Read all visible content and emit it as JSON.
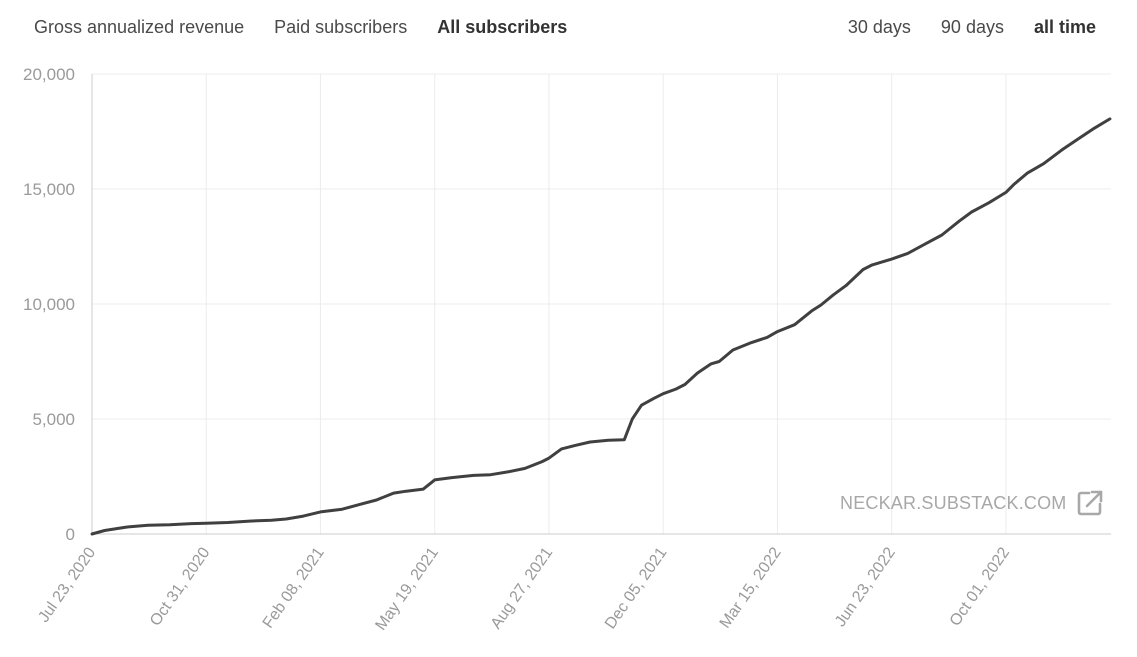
{
  "tabs": {
    "metrics": [
      {
        "label": "Gross annualized revenue",
        "active": false
      },
      {
        "label": "Paid subscribers",
        "active": false
      },
      {
        "label": "All subscribers",
        "active": true
      }
    ],
    "ranges": [
      {
        "label": "30 days",
        "active": false
      },
      {
        "label": "90 days",
        "active": false
      },
      {
        "label": "all time",
        "active": true
      }
    ]
  },
  "watermark": {
    "text": "NECKAR.SUBSTACK.COM",
    "icon": "external-link-icon"
  },
  "colors": {
    "line": "#404040",
    "grid": "#ececec",
    "axis": "#cccccc",
    "tick_text": "#9a9a9a"
  },
  "chart_data": {
    "type": "line",
    "title": "",
    "xlabel": "",
    "ylabel": "",
    "ylim": [
      0,
      20000
    ],
    "yticks": [
      0,
      5000,
      10000,
      15000,
      20000
    ],
    "ytick_labels": [
      "0",
      "5,000",
      "10,000",
      "15,000",
      "20,000"
    ],
    "xlim": [
      "2020-07-23",
      "2023-01-01"
    ],
    "xticks": [
      "2020-07-23",
      "2020-10-31",
      "2021-02-08",
      "2021-05-19",
      "2021-08-27",
      "2021-12-05",
      "2022-03-15",
      "2022-06-23",
      "2022-10-01"
    ],
    "xtick_labels": [
      "Jul 23, 2020",
      "Oct 31, 2020",
      "Feb 08, 2021",
      "May 19, 2021",
      "Aug 27, 2021",
      "Dec 05, 2021",
      "Mar 15, 2022",
      "Jun 23, 2022",
      "Oct 01, 2022"
    ],
    "grid": true,
    "series": [
      {
        "x": [
          "2020-07-23",
          "2020-08-03",
          "2020-08-22",
          "2020-09-10",
          "2020-09-29",
          "2020-10-18",
          "2020-10-31",
          "2020-11-19",
          "2020-12-08",
          "2020-12-27",
          "2021-01-09",
          "2021-01-24",
          "2021-02-08",
          "2021-02-27",
          "2021-03-14",
          "2021-03-29",
          "2021-04-13",
          "2021-04-24",
          "2021-05-09",
          "2021-05-19",
          "2021-06-03",
          "2021-06-22",
          "2021-07-07",
          "2021-07-22",
          "2021-08-06",
          "2021-08-21",
          "2021-08-27",
          "2021-09-07",
          "2021-09-19",
          "2021-10-02",
          "2021-10-18",
          "2021-11-01",
          "2021-11-08",
          "2021-11-16",
          "2021-11-27",
          "2021-12-05",
          "2021-12-16",
          "2021-12-24",
          "2022-01-04",
          "2022-01-16",
          "2022-01-23",
          "2022-02-04",
          "2022-02-19",
          "2022-03-06",
          "2022-03-15",
          "2022-03-30",
          "2022-04-14",
          "2022-04-22",
          "2022-05-03",
          "2022-05-14",
          "2022-05-29",
          "2022-06-06",
          "2022-06-23",
          "2022-07-07",
          "2022-07-22",
          "2022-08-06",
          "2022-08-21",
          "2022-09-01",
          "2022-09-16",
          "2022-10-01",
          "2022-10-08",
          "2022-10-20",
          "2022-11-03",
          "2022-11-19",
          "2022-12-04",
          "2022-12-16",
          "2022-12-31"
        ],
        "values": [
          0,
          150,
          300,
          380,
          400,
          450,
          470,
          500,
          560,
          600,
          650,
          780,
          960,
          1080,
          1280,
          1480,
          1780,
          1860,
          1950,
          2350,
          2450,
          2550,
          2580,
          2700,
          2850,
          3150,
          3300,
          3700,
          3850,
          4000,
          4080,
          4100,
          5000,
          5600,
          5900,
          6100,
          6300,
          6500,
          7000,
          7400,
          7500,
          8000,
          8300,
          8550,
          8800,
          9100,
          9700,
          9950,
          10400,
          10800,
          11500,
          11700,
          11950,
          12200,
          12600,
          13000,
          13600,
          14000,
          14400,
          14850,
          15200,
          15700,
          16100,
          16700,
          17200,
          17600,
          18050
        ]
      }
    ]
  }
}
